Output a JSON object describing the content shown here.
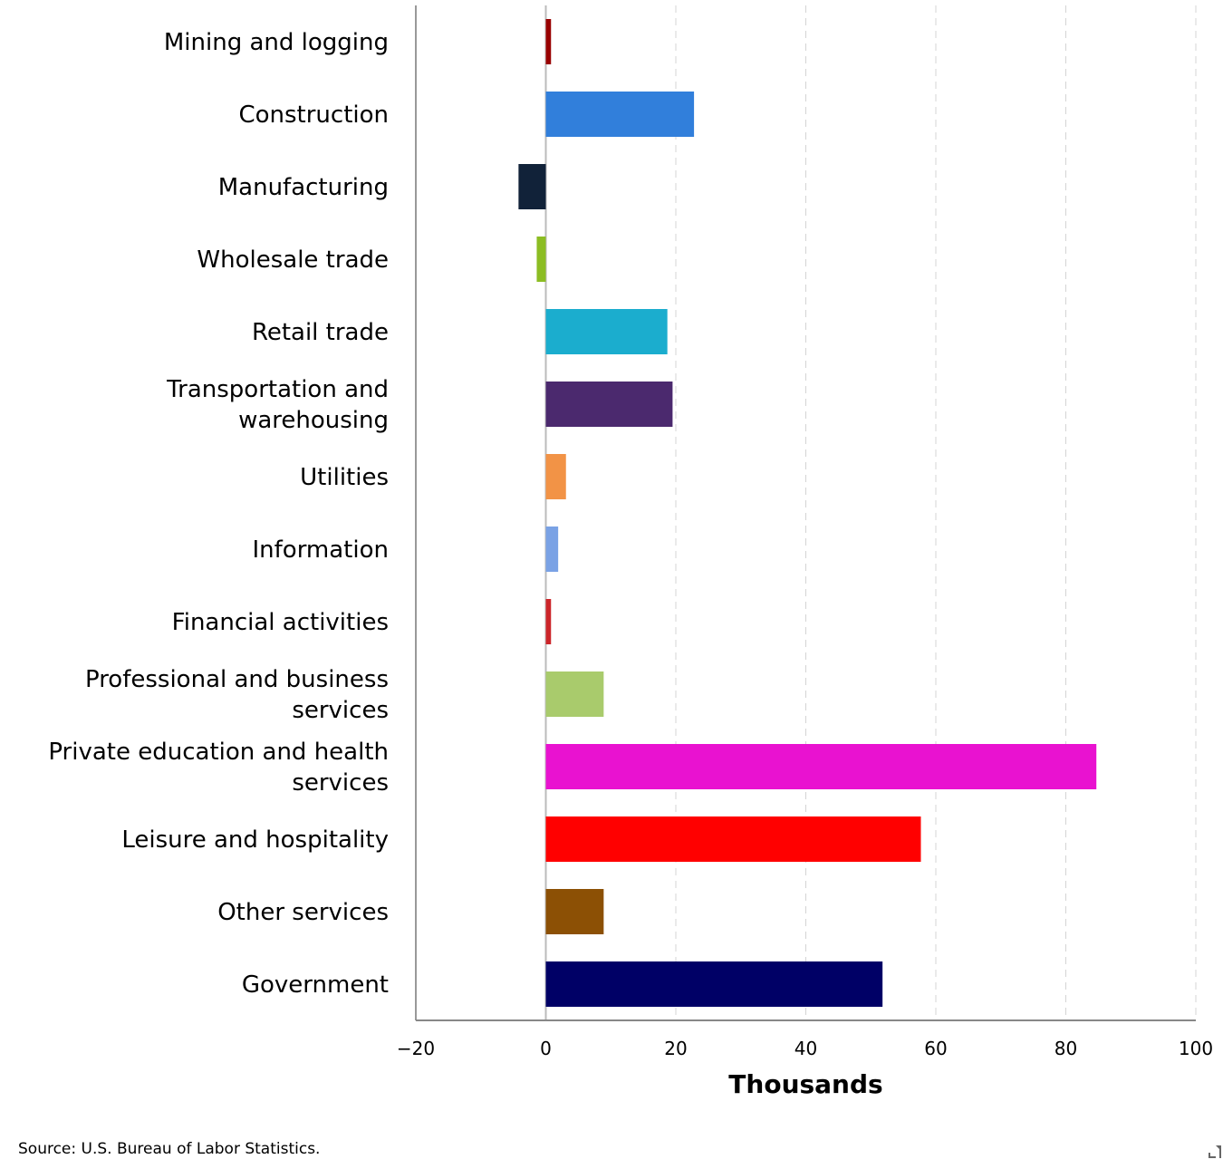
{
  "chart_data": {
    "type": "bar",
    "orientation": "horizontal",
    "title": "",
    "xlabel": "Thousands",
    "ylabel": "",
    "xlim": [
      -20,
      100
    ],
    "xticks": [
      -20,
      0,
      20,
      40,
      60,
      80,
      100
    ],
    "xtick_labels": [
      "−20",
      "0",
      "20",
      "40",
      "60",
      "80",
      "100"
    ],
    "grid": "vertical dashed",
    "categories": [
      [
        "Mining and logging"
      ],
      [
        "Construction"
      ],
      [
        "Manufacturing"
      ],
      [
        "Wholesale trade"
      ],
      [
        "Retail trade"
      ],
      [
        "Transportation and",
        "warehousing"
      ],
      [
        "Utilities"
      ],
      [
        "Information"
      ],
      [
        "Financial activities"
      ],
      [
        "Professional and business",
        "services"
      ],
      [
        "Private education and health",
        "services"
      ],
      [
        "Leisure and hospitality"
      ],
      [
        "Other services"
      ],
      [
        "Government"
      ]
    ],
    "values": [
      0.8,
      22.8,
      -4.2,
      -1.4,
      18.7,
      19.5,
      3.1,
      1.9,
      0.8,
      8.9,
      84.7,
      57.7,
      8.9,
      51.8
    ],
    "colors": [
      "#990000",
      "#317fdb",
      "#112239",
      "#8cbd23",
      "#1badce",
      "#4b296e",
      "#f29346",
      "#7aa2e5",
      "#cc2529",
      "#a9cb6c",
      "#e912d0",
      "#ff0000",
      "#8c5005",
      "#000066"
    ]
  },
  "source": "Source: U.S. Bureau of Labor Statistics."
}
